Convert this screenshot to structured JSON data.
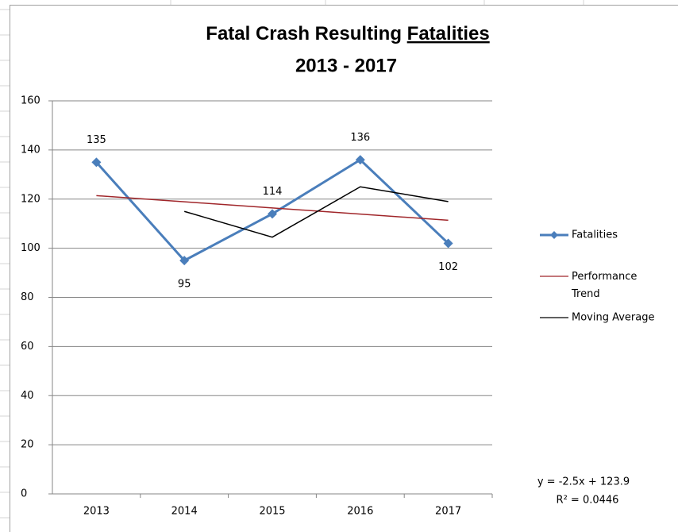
{
  "chart_data": {
    "type": "line",
    "title_parts": [
      "Fatal Crash Resulting ",
      "Fatalities"
    ],
    "subtitle": "2013 - 2017",
    "categories": [
      "2013",
      "2014",
      "2015",
      "2016",
      "2017"
    ],
    "series": [
      {
        "name": "Fatalities",
        "color": "#4a7ebb",
        "marker": "diamond",
        "values": [
          135,
          95,
          114,
          136,
          102
        ],
        "label_positions": [
          "above",
          "below",
          "above",
          "above",
          "below"
        ]
      },
      {
        "name": "Performance Trend",
        "color": "#a0262a",
        "values": [
          121.4,
          118.9,
          116.4,
          113.9,
          111.4
        ]
      },
      {
        "name": "Moving Average",
        "color": "#000000",
        "values": [
          null,
          115,
          104.5,
          125,
          119
        ]
      }
    ],
    "annotations": [
      "y = -2.5x + 123.9",
      "R² = 0.0446"
    ],
    "ylim": [
      0,
      160
    ],
    "yticks": [
      0,
      20,
      40,
      60,
      80,
      100,
      120,
      140,
      160
    ],
    "grid": true,
    "legend": "right"
  }
}
